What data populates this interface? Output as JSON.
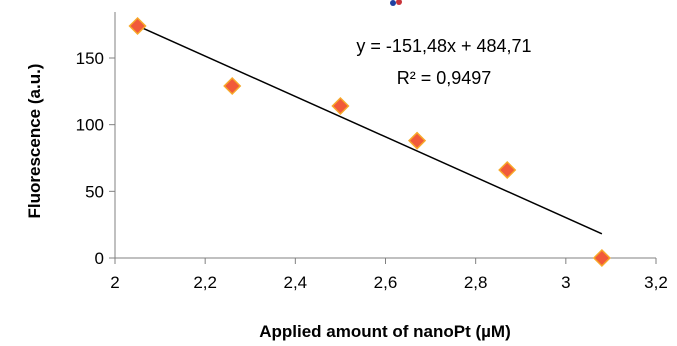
{
  "chart_data": {
    "type": "scatter",
    "xlabel": "Applied amount of nanoPt (µM)",
    "ylabel": "Fluorescence (a.u.)",
    "xlim": [
      2,
      3.2
    ],
    "ylim": [
      0,
      180
    ],
    "x_ticks": [
      "2",
      "2,2",
      "2,4",
      "2,6",
      "2,8",
      "3",
      "3,2"
    ],
    "y_ticks": [
      "0",
      "50",
      "100",
      "150"
    ],
    "x_tick_values": [
      2,
      2.2,
      2.4,
      2.6,
      2.8,
      3.0,
      3.2
    ],
    "y_tick_values": [
      0,
      50,
      100,
      150
    ],
    "grid": false,
    "series": [
      {
        "x": [
          2.05,
          2.26,
          2.5,
          2.67,
          2.87,
          3.08
        ],
        "y": [
          174,
          129,
          114,
          88,
          66,
          0
        ],
        "marker": "diamond",
        "color": "#f15a3a",
        "edge_color": "#f7a829"
      }
    ],
    "trendline": {
      "slope": -151.48,
      "intercept": 484.71,
      "x_range": [
        2.05,
        3.08
      ],
      "color": "#000000"
    },
    "annotations": {
      "equation": "y = -151,48x + 484,71",
      "r_squared": "R² = 0,9497"
    }
  }
}
